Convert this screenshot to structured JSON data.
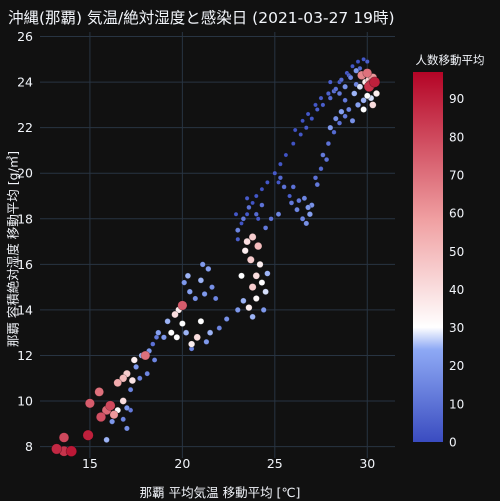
{
  "chart_data": {
    "type": "scatter",
    "title": "沖縄(那覇) 気温/絶対湿度と感染日 (2021-03-27 19時)",
    "xlabel": "那覇 平均気温 移動平均 [℃]",
    "ylabel": "那覇 容積絶対湿度 移動平均 [g/㎥]",
    "xlim": [
      12.3,
      31.5
    ],
    "ylim": [
      7.5,
      26.2
    ],
    "xticks": [
      15,
      20,
      25,
      30
    ],
    "yticks": [
      8,
      10,
      12,
      14,
      16,
      18,
      20,
      22,
      24,
      26
    ],
    "grid": true,
    "colorbar": {
      "title": "人数移動平均",
      "range": [
        0,
        97
      ],
      "ticks": [
        0,
        10,
        20,
        30,
        40,
        50,
        60,
        70,
        80,
        90
      ],
      "colors": [
        "#3a4cc0",
        "#8ea9f5",
        "#ffffff",
        "#f0a0a2",
        "#b40426"
      ]
    },
    "points": [
      [
        13.2,
        7.9,
        88
      ],
      [
        13.6,
        7.8,
        85
      ],
      [
        13.6,
        8.4,
        80
      ],
      [
        14.0,
        7.8,
        92
      ],
      [
        14.9,
        8.5,
        90
      ],
      [
        15.0,
        9.9,
        75
      ],
      [
        15.5,
        10.4,
        70
      ],
      [
        15.6,
        9.3,
        78
      ],
      [
        15.9,
        9.6,
        72
      ],
      [
        16.1,
        9.8,
        80
      ],
      [
        16.3,
        9.4,
        60
      ],
      [
        15.9,
        8.3,
        25
      ],
      [
        16.2,
        9.1,
        20
      ],
      [
        16.5,
        9.6,
        30
      ],
      [
        16.8,
        10.0,
        40
      ],
      [
        17.0,
        9.7,
        20
      ],
      [
        17.2,
        10.5,
        15
      ],
      [
        16.5,
        10.8,
        55
      ],
      [
        16.8,
        11.0,
        50
      ],
      [
        17.0,
        11.2,
        45
      ],
      [
        17.3,
        10.9,
        38
      ],
      [
        17.5,
        11.5,
        20
      ],
      [
        17.7,
        11.0,
        15
      ],
      [
        17.4,
        11.8,
        35
      ],
      [
        17.8,
        12.0,
        25
      ],
      [
        18.0,
        12.0,
        70
      ],
      [
        18.2,
        12.2,
        20
      ],
      [
        18.1,
        11.2,
        15
      ],
      [
        18.4,
        12.5,
        10
      ],
      [
        18.6,
        12.8,
        12
      ],
      [
        18.5,
        11.8,
        15
      ],
      [
        16.8,
        9.2,
        15
      ],
      [
        17.2,
        9.6,
        12
      ],
      [
        17.0,
        8.8,
        18
      ],
      [
        18.7,
        13.0,
        22
      ],
      [
        19.0,
        12.8,
        20
      ],
      [
        19.2,
        13.5,
        25
      ],
      [
        19.4,
        13.0,
        30
      ],
      [
        19.6,
        13.8,
        40
      ],
      [
        19.8,
        14.0,
        35
      ],
      [
        20.0,
        14.2,
        75
      ],
      [
        20.0,
        13.4,
        30
      ],
      [
        19.7,
        12.8,
        30
      ],
      [
        20.2,
        13.0,
        25
      ],
      [
        20.5,
        12.5,
        35
      ],
      [
        20.8,
        12.8,
        40
      ],
      [
        21.0,
        13.5,
        30
      ],
      [
        21.3,
        12.6,
        20
      ],
      [
        21.5,
        13.0,
        25
      ],
      [
        20.1,
        15.2,
        20
      ],
      [
        20.4,
        14.8,
        22
      ],
      [
        20.7,
        14.5,
        18
      ],
      [
        21.0,
        15.3,
        25
      ],
      [
        21.2,
        14.7,
        20
      ],
      [
        21.4,
        15.8,
        22
      ],
      [
        21.6,
        15.0,
        18
      ],
      [
        21.8,
        14.5,
        15
      ],
      [
        20.3,
        15.5,
        25
      ],
      [
        21.1,
        16.0,
        20
      ],
      [
        20.5,
        12.3,
        15
      ],
      [
        22.0,
        13.2,
        15
      ],
      [
        22.4,
        13.6,
        18
      ],
      [
        23.0,
        14.0,
        20
      ],
      [
        23.3,
        14.4,
        25
      ],
      [
        23.6,
        14.1,
        35
      ],
      [
        23.8,
        15.0,
        45
      ],
      [
        24.0,
        15.5,
        40
      ],
      [
        24.2,
        16.0,
        35
      ],
      [
        23.2,
        15.5,
        30
      ],
      [
        23.7,
        16.2,
        45
      ],
      [
        23.5,
        17.0,
        40
      ],
      [
        23.8,
        17.2,
        45
      ],
      [
        24.1,
        16.8,
        50
      ],
      [
        23.4,
        16.6,
        35
      ],
      [
        24.3,
        15.2,
        30
      ],
      [
        24.5,
        14.8,
        28
      ],
      [
        24.0,
        14.5,
        32
      ],
      [
        23.8,
        13.7,
        25
      ],
      [
        24.4,
        14.0,
        20
      ],
      [
        24.6,
        15.6,
        25
      ],
      [
        23.0,
        17.5,
        15
      ],
      [
        23.3,
        18.0,
        12
      ],
      [
        23.6,
        18.5,
        10
      ],
      [
        24.0,
        18.2,
        8
      ],
      [
        24.3,
        18.6,
        10
      ],
      [
        24.5,
        17.6,
        12
      ],
      [
        24.8,
        18.0,
        10
      ],
      [
        25.2,
        18.2,
        15
      ],
      [
        25.5,
        19.4,
        10
      ],
      [
        25.8,
        19.0,
        5
      ],
      [
        25.3,
        19.8,
        8
      ],
      [
        26.0,
        19.4,
        10
      ],
      [
        25.9,
        18.7,
        12
      ],
      [
        26.2,
        18.4,
        15
      ],
      [
        26.3,
        18.8,
        12
      ],
      [
        26.5,
        18.0,
        15
      ],
      [
        26.7,
        17.8,
        18
      ],
      [
        26.8,
        18.5,
        20
      ],
      [
        26.9,
        18.2,
        22
      ],
      [
        27.0,
        18.6,
        18
      ],
      [
        26.6,
        18.9,
        15
      ],
      [
        27.2,
        19.8,
        10
      ],
      [
        27.5,
        20.2,
        8
      ],
      [
        27.8,
        20.6,
        10
      ],
      [
        27.3,
        19.5,
        12
      ],
      [
        27.6,
        20.8,
        12
      ],
      [
        27.9,
        21.3,
        10
      ],
      [
        28.2,
        21.8,
        8
      ],
      [
        28.5,
        22.2,
        10
      ],
      [
        28.8,
        22.5,
        12
      ],
      [
        29.0,
        22.8,
        15
      ],
      [
        29.2,
        22.3,
        18
      ],
      [
        29.5,
        23.0,
        22
      ],
      [
        29.8,
        23.2,
        25
      ],
      [
        30.0,
        23.4,
        30
      ],
      [
        30.2,
        23.3,
        28
      ],
      [
        28.0,
        22.0,
        20
      ],
      [
        28.3,
        22.4,
        18
      ],
      [
        28.6,
        22.7,
        22
      ],
      [
        29.3,
        23.5,
        25
      ],
      [
        29.6,
        23.8,
        28
      ],
      [
        29.9,
        24.0,
        35
      ],
      [
        30.1,
        24.1,
        45
      ],
      [
        30.3,
        24.2,
        60
      ],
      [
        30.0,
        24.4,
        70
      ],
      [
        29.7,
        24.3,
        65
      ],
      [
        30.2,
        23.9,
        80
      ],
      [
        30.4,
        24.0,
        90
      ],
      [
        30.1,
        23.8,
        85
      ],
      [
        29.4,
        24.5,
        20
      ],
      [
        29.1,
        24.2,
        15
      ],
      [
        28.8,
        23.8,
        18
      ],
      [
        28.5,
        23.5,
        12
      ],
      [
        28.2,
        23.6,
        10
      ],
      [
        28.0,
        23.3,
        8
      ],
      [
        27.6,
        23.0,
        5
      ],
      [
        27.3,
        22.8,
        5
      ],
      [
        27.0,
        22.4,
        3
      ],
      [
        26.7,
        22.0,
        4
      ],
      [
        26.4,
        21.7,
        3
      ],
      [
        26.0,
        21.3,
        2
      ],
      [
        25.6,
        20.8,
        2
      ],
      [
        25.3,
        20.4,
        3
      ],
      [
        25.0,
        20.0,
        4
      ],
      [
        24.6,
        19.6,
        3
      ],
      [
        24.3,
        19.3,
        2
      ],
      [
        24.0,
        19.0,
        3
      ],
      [
        23.8,
        18.7,
        2
      ],
      [
        23.5,
        18.2,
        3
      ],
      [
        23.2,
        17.8,
        2
      ],
      [
        25.2,
        19.6,
        3
      ],
      [
        28.5,
        24.0,
        5
      ],
      [
        28.9,
        24.4,
        4
      ],
      [
        29.2,
        24.7,
        3
      ],
      [
        29.5,
        24.9,
        2
      ],
      [
        29.8,
        25.0,
        3
      ],
      [
        30.0,
        24.9,
        5
      ],
      [
        29.6,
        24.6,
        8
      ],
      [
        29.0,
        24.3,
        6
      ],
      [
        28.6,
        24.1,
        8
      ],
      [
        28.3,
        23.7,
        10
      ],
      [
        27.9,
        23.5,
        6
      ],
      [
        27.5,
        23.3,
        4
      ],
      [
        27.2,
        23.0,
        3
      ],
      [
        26.8,
        22.6,
        3
      ],
      [
        26.5,
        22.3,
        2
      ],
      [
        26.1,
        21.9,
        2
      ],
      [
        28.0,
        24.0,
        5
      ],
      [
        28.8,
        23.2,
        12
      ],
      [
        29.4,
        23.9,
        15
      ],
      [
        30.5,
        23.5,
        35
      ],
      [
        30.3,
        23.0,
        40
      ],
      [
        29.8,
        22.8,
        30
      ],
      [
        24.1,
        18.0,
        4
      ],
      [
        23.0,
        17.1,
        5
      ],
      [
        22.9,
        18.2,
        3
      ],
      [
        23.5,
        18.9,
        4
      ]
    ]
  }
}
